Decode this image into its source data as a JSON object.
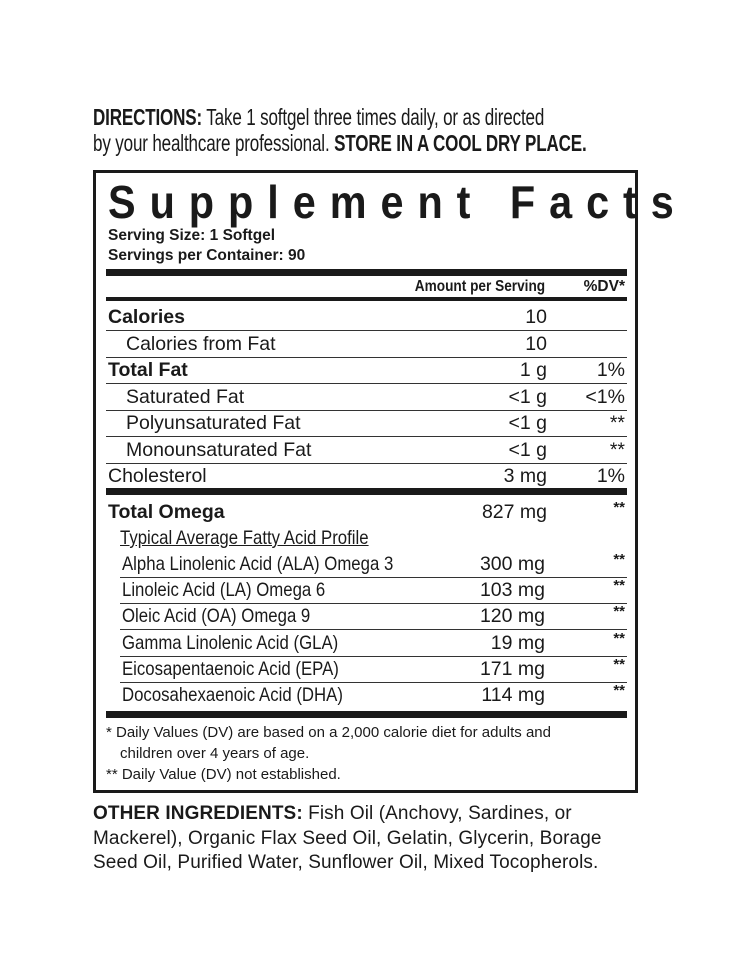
{
  "directions": {
    "label": "DIRECTIONS:",
    "text1": " Take 1 softgel three times daily, or as directed",
    "text2": "by your healthcare professional. ",
    "storage": "STORE IN A COOL DRY PLACE."
  },
  "facts": {
    "title": "Supplement Facts",
    "serving_size": "Serving Size: 1 Softgel",
    "servings_per_container": "Servings per Container: 90",
    "header_amount": "Amount per Serving",
    "header_dv": "%DV*",
    "rows": [
      {
        "label": "Calories",
        "amount": "10",
        "dv": ""
      },
      {
        "label": "Calories from Fat",
        "amount": "10",
        "dv": ""
      },
      {
        "label": "Total Fat",
        "amount": "1 g",
        "dv": "1%"
      },
      {
        "label": "Saturated Fat",
        "amount": "<1 g",
        "dv": "<1%"
      },
      {
        "label": "Polyunsaturated Fat",
        "amount": "<1 g",
        "dv": "**"
      },
      {
        "label": "Monounsaturated Fat",
        "amount": "<1 g",
        "dv": "**"
      },
      {
        "label": "Cholesterol",
        "amount": "3 mg",
        "dv": "1%"
      }
    ],
    "omega": {
      "label": "Total Omega",
      "amount": "827 mg",
      "dv": "**"
    },
    "profile_heading": "Typical Average Fatty Acid Profile",
    "acids": [
      {
        "label": "Alpha Linolenic Acid (ALA) Omega 3",
        "amount": "300 mg",
        "dv": "**"
      },
      {
        "label": "Linoleic Acid (LA) Omega 6",
        "amount": "103 mg",
        "dv": "**"
      },
      {
        "label": "Oleic Acid (OA) Omega 9",
        "amount": "120 mg",
        "dv": "**"
      },
      {
        "label": "Gamma Linolenic Acid (GLA)",
        "amount": "19 mg",
        "dv": "**"
      },
      {
        "label": "Eicosapentaenoic Acid (EPA)",
        "amount": "171 mg",
        "dv": "**"
      },
      {
        "label": "Docosahexaenoic Acid (DHA)",
        "amount": "114 mg",
        "dv": "**"
      }
    ],
    "footnote1a": "* Daily Values (DV) are based on a 2,000 calorie diet for adults and",
    "footnote1b": "children over 4 years of age.",
    "footnote2": "** Daily Value (DV) not established."
  },
  "other_ingredients": {
    "label": "OTHER INGREDIENTS:",
    "line1": " Fish Oil (Anchovy, Sardines, or",
    "line2": "Mackerel), Organic Flax Seed Oil, Gelatin, Glycerin, Borage",
    "line3": "Seed Oil, Purified Water, Sunflower Oil, Mixed Tocopherols."
  }
}
